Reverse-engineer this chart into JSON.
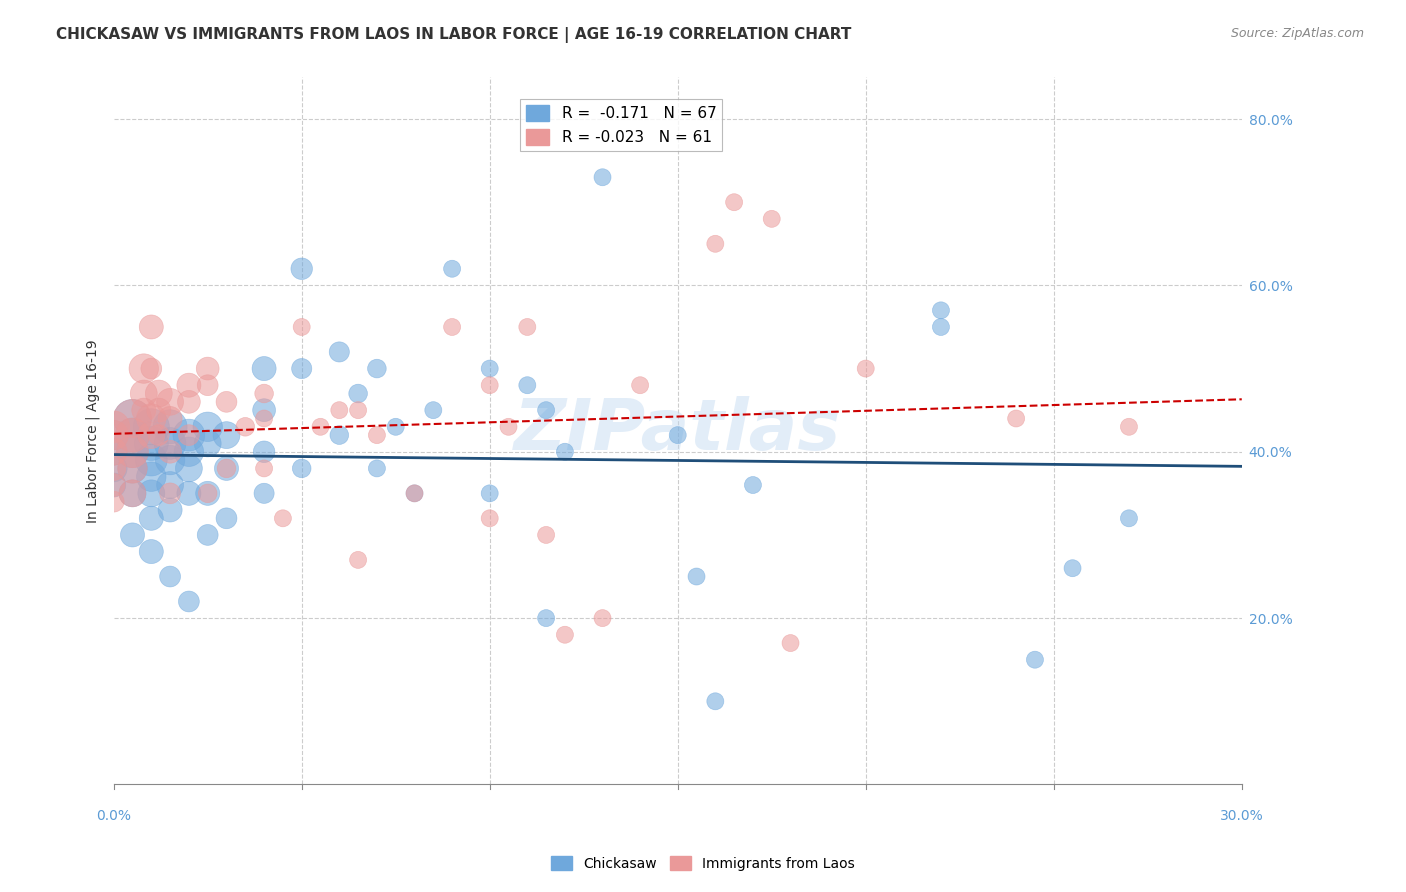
{
  "title": "CHICKASAW VS IMMIGRANTS FROM LAOS IN LABOR FORCE | AGE 16-19 CORRELATION CHART",
  "source": "Source: ZipAtlas.com",
  "xlabel": "",
  "ylabel": "In Labor Force | Age 16-19",
  "xlim": [
    0.0,
    0.3
  ],
  "ylim": [
    0.0,
    0.85
  ],
  "xticks": [
    0.0,
    0.05,
    0.1,
    0.15,
    0.2,
    0.25,
    0.3
  ],
  "xticklabels": [
    "0.0%",
    "",
    "",
    "",
    "",
    "",
    "30.0%"
  ],
  "yticks_right": [
    0.2,
    0.4,
    0.6,
    0.8
  ],
  "ytick_labels_right": [
    "20.0%",
    "40.0%",
    "60.0%",
    "80.0%"
  ],
  "legend_r1": "R =  -0.171   N = 67",
  "legend_r2": "R = -0.023   N = 61",
  "watermark": "ZIPatlas",
  "blue_color": "#6fa8dc",
  "pink_color": "#ea9999",
  "trend_blue": "#1f4e79",
  "trend_pink": "#cc0000",
  "blue_scatter_x": [
    0.0,
    0.0,
    0.0,
    0.0,
    0.005,
    0.005,
    0.005,
    0.005,
    0.005,
    0.005,
    0.01,
    0.01,
    0.01,
    0.01,
    0.01,
    0.01,
    0.01,
    0.015,
    0.015,
    0.015,
    0.015,
    0.015,
    0.015,
    0.02,
    0.02,
    0.02,
    0.02,
    0.02,
    0.025,
    0.025,
    0.025,
    0.025,
    0.03,
    0.03,
    0.03,
    0.04,
    0.04,
    0.04,
    0.04,
    0.05,
    0.05,
    0.05,
    0.06,
    0.06,
    0.065,
    0.07,
    0.07,
    0.075,
    0.08,
    0.085,
    0.09,
    0.1,
    0.1,
    0.11,
    0.115,
    0.115,
    0.12,
    0.13,
    0.15,
    0.155,
    0.16,
    0.17,
    0.22,
    0.22,
    0.245,
    0.255,
    0.27
  ],
  "blue_scatter_y": [
    0.42,
    0.4,
    0.38,
    0.36,
    0.44,
    0.42,
    0.4,
    0.38,
    0.35,
    0.3,
    0.43,
    0.41,
    0.39,
    0.37,
    0.35,
    0.32,
    0.28,
    0.43,
    0.41,
    0.39,
    0.36,
    0.33,
    0.25,
    0.42,
    0.4,
    0.38,
    0.35,
    0.22,
    0.43,
    0.41,
    0.35,
    0.3,
    0.42,
    0.38,
    0.32,
    0.5,
    0.45,
    0.4,
    0.35,
    0.62,
    0.5,
    0.38,
    0.52,
    0.42,
    0.47,
    0.5,
    0.38,
    0.43,
    0.35,
    0.45,
    0.62,
    0.5,
    0.35,
    0.48,
    0.45,
    0.2,
    0.4,
    0.73,
    0.42,
    0.25,
    0.1,
    0.36,
    0.57,
    0.55,
    0.15,
    0.26,
    0.32
  ],
  "pink_scatter_x": [
    0.0,
    0.0,
    0.0,
    0.0,
    0.0,
    0.0,
    0.005,
    0.005,
    0.005,
    0.005,
    0.005,
    0.008,
    0.008,
    0.008,
    0.01,
    0.01,
    0.01,
    0.01,
    0.012,
    0.012,
    0.012,
    0.015,
    0.015,
    0.015,
    0.015,
    0.02,
    0.02,
    0.02,
    0.025,
    0.025,
    0.025,
    0.03,
    0.03,
    0.035,
    0.04,
    0.04,
    0.04,
    0.045,
    0.05,
    0.055,
    0.06,
    0.065,
    0.065,
    0.07,
    0.08,
    0.09,
    0.1,
    0.1,
    0.105,
    0.11,
    0.115,
    0.12,
    0.13,
    0.14,
    0.16,
    0.165,
    0.175,
    0.18,
    0.2,
    0.24,
    0.27
  ],
  "pink_scatter_y": [
    0.43,
    0.42,
    0.4,
    0.38,
    0.36,
    0.34,
    0.44,
    0.42,
    0.4,
    0.38,
    0.35,
    0.5,
    0.47,
    0.45,
    0.44,
    0.42,
    0.55,
    0.5,
    0.47,
    0.45,
    0.42,
    0.46,
    0.44,
    0.4,
    0.35,
    0.48,
    0.46,
    0.42,
    0.5,
    0.48,
    0.35,
    0.46,
    0.38,
    0.43,
    0.47,
    0.44,
    0.38,
    0.32,
    0.55,
    0.43,
    0.45,
    0.45,
    0.27,
    0.42,
    0.35,
    0.55,
    0.48,
    0.32,
    0.43,
    0.55,
    0.3,
    0.18,
    0.2,
    0.48,
    0.65,
    0.7,
    0.68,
    0.17,
    0.5,
    0.44,
    0.43
  ],
  "blue_sizes": [
    30,
    25,
    25,
    20,
    50,
    40,
    35,
    30,
    25,
    20,
    45,
    40,
    35,
    30,
    25,
    20,
    20,
    40,
    35,
    30,
    25,
    20,
    15,
    35,
    30,
    25,
    20,
    15,
    30,
    25,
    20,
    15,
    25,
    20,
    15,
    20,
    18,
    16,
    14,
    16,
    14,
    12,
    14,
    12,
    12,
    12,
    10,
    10,
    10,
    10,
    10,
    10,
    10,
    10,
    10,
    10,
    10,
    10,
    10,
    10,
    10,
    10,
    10,
    10,
    10,
    10,
    10
  ],
  "pink_sizes": [
    35,
    30,
    25,
    20,
    18,
    15,
    50,
    40,
    35,
    30,
    25,
    30,
    25,
    20,
    30,
    25,
    20,
    15,
    25,
    20,
    15,
    25,
    20,
    18,
    15,
    20,
    18,
    15,
    18,
    15,
    12,
    15,
    12,
    12,
    12,
    10,
    10,
    10,
    10,
    10,
    10,
    10,
    10,
    10,
    10,
    10,
    10,
    10,
    10,
    10,
    10,
    10,
    10,
    10,
    10,
    10,
    10,
    10,
    10,
    10,
    10
  ]
}
